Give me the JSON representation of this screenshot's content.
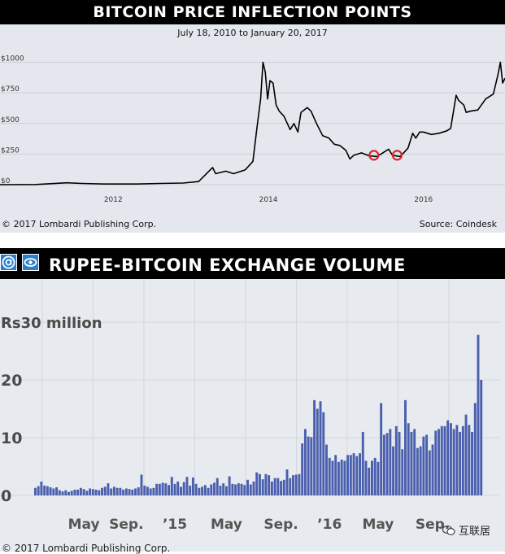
{
  "chart_data": [
    {
      "type": "line",
      "title": "BITCOIN PRICE INFLECTION POINTS",
      "subtitle": "July 18, 2010 to January 20, 2017",
      "y_ticks": [
        "$1000",
        "$750",
        "$500",
        "$250",
        "$0"
      ],
      "y_tick_values": [
        1000,
        750,
        500,
        250,
        0
      ],
      "x_ticks": [
        "2012",
        "2014",
        "2016"
      ],
      "x_tick_values": [
        2012.0,
        2014.0,
        2016.0
      ],
      "xlim": [
        2010.54,
        2017.05
      ],
      "ylim": [
        0,
        1030
      ],
      "grid": true,
      "line_color": "#000000",
      "highlight_color": "#e0262b",
      "points": [
        [
          2010.54,
          0
        ],
        [
          2011.0,
          1
        ],
        [
          2011.4,
          15
        ],
        [
          2011.6,
          10
        ],
        [
          2011.9,
          5
        ],
        [
          2012.3,
          5
        ],
        [
          2012.6,
          10
        ],
        [
          2012.9,
          13
        ],
        [
          2013.1,
          25
        ],
        [
          2013.28,
          140
        ],
        [
          2013.32,
          90
        ],
        [
          2013.45,
          110
        ],
        [
          2013.55,
          90
        ],
        [
          2013.7,
          120
        ],
        [
          2013.8,
          190
        ],
        [
          2013.85,
          450
        ],
        [
          2013.9,
          700
        ],
        [
          2013.93,
          1000
        ],
        [
          2013.96,
          920
        ],
        [
          2013.99,
          700
        ],
        [
          2014.02,
          850
        ],
        [
          2014.06,
          830
        ],
        [
          2014.1,
          650
        ],
        [
          2014.14,
          600
        ],
        [
          2014.2,
          560
        ],
        [
          2014.28,
          450
        ],
        [
          2014.33,
          500
        ],
        [
          2014.38,
          430
        ],
        [
          2014.42,
          590
        ],
        [
          2014.5,
          630
        ],
        [
          2014.55,
          600
        ],
        [
          2014.62,
          500
        ],
        [
          2014.7,
          400
        ],
        [
          2014.78,
          380
        ],
        [
          2014.85,
          330
        ],
        [
          2014.92,
          320
        ],
        [
          2015.0,
          280
        ],
        [
          2015.05,
          210
        ],
        [
          2015.1,
          240
        ],
        [
          2015.2,
          260
        ],
        [
          2015.3,
          235
        ],
        [
          2015.4,
          230
        ],
        [
          2015.5,
          270
        ],
        [
          2015.55,
          290
        ],
        [
          2015.6,
          240
        ],
        [
          2015.7,
          230
        ],
        [
          2015.8,
          300
        ],
        [
          2015.86,
          420
        ],
        [
          2015.9,
          380
        ],
        [
          2015.95,
          430
        ],
        [
          2016.0,
          430
        ],
        [
          2016.1,
          410
        ],
        [
          2016.2,
          420
        ],
        [
          2016.3,
          440
        ],
        [
          2016.35,
          460
        ],
        [
          2016.42,
          730
        ],
        [
          2016.45,
          690
        ],
        [
          2016.52,
          650
        ],
        [
          2016.55,
          590
        ],
        [
          2016.6,
          600
        ],
        [
          2016.7,
          610
        ],
        [
          2016.8,
          700
        ],
        [
          2016.9,
          740
        ],
        [
          2016.96,
          900
        ],
        [
          2016.99,
          1000
        ],
        [
          2017.02,
          830
        ],
        [
          2017.05,
          870
        ]
      ],
      "highlights": [
        [
          2015.36,
          240
        ],
        [
          2015.66,
          240
        ]
      ],
      "footer_left": "© 2017 Lombardi Publishing Corp.",
      "footer_right": "Source: Coindesk"
    },
    {
      "type": "bar",
      "title": "RUPEE-BITCOIN EXCHANGE VOLUME",
      "y_tick_labels": [
        "Rs30 million",
        "20",
        "10",
        "0"
      ],
      "y_tick_values": [
        30,
        20,
        10,
        0
      ],
      "ylim": [
        0,
        30
      ],
      "x_tick_labels": [
        "May",
        "Sep.",
        "’15",
        "May",
        "Sep.",
        "’16",
        "May",
        "Sep."
      ],
      "x_tick_bar_index": [
        16,
        30,
        46,
        63,
        81,
        97,
        113,
        131
      ],
      "bar_color": "#4a5fad",
      "grid": true,
      "values": [
        1.3,
        1.6,
        2.4,
        1.7,
        1.6,
        1.4,
        1.2,
        1.4,
        0.9,
        0.7,
        0.9,
        0.6,
        0.8,
        1.0,
        1.0,
        1.3,
        1.1,
        0.8,
        1.2,
        1.1,
        1.0,
        0.9,
        1.3,
        1.5,
        2.1,
        1.2,
        1.5,
        1.3,
        1.3,
        1.0,
        1.2,
        1.1,
        1.0,
        1.2,
        1.4,
        3.6,
        1.7,
        1.5,
        1.2,
        1.3,
        2.0,
        2.0,
        2.2,
        2.1,
        1.8,
        3.2,
        2.0,
        2.4,
        1.5,
        2.3,
        3.2,
        1.7,
        3.1,
        2.0,
        1.3,
        1.5,
        1.8,
        1.3,
        1.9,
        2.2,
        3.0,
        1.7,
        2.1,
        1.6,
        3.3,
        2.0,
        1.9,
        2.1,
        2.0,
        1.8,
        2.7,
        1.9,
        2.4,
        4.0,
        3.7,
        2.8,
        3.7,
        3.5,
        2.4,
        3.0,
        3.0,
        2.5,
        2.7,
        4.5,
        3.0,
        3.5,
        3.6,
        3.7,
        9.0,
        11.5,
        10.2,
        10.1,
        16.5,
        15.0,
        16.3,
        14.4,
        8.8,
        6.5,
        6.0,
        7.0,
        5.8,
        6.2,
        6.0,
        7.0,
        7.0,
        7.3,
        6.8,
        7.3,
        11.0,
        6.0,
        4.8,
        6.0,
        6.5,
        5.8,
        16.0,
        10.5,
        10.8,
        11.5,
        8.5,
        12.0,
        11.0,
        8.0,
        16.5,
        12.5,
        11.0,
        11.5,
        8.2,
        8.5,
        10.2,
        10.5,
        7.8,
        8.8,
        11.2,
        11.5,
        12.0,
        12.0,
        13.0,
        12.5,
        11.5,
        12.2,
        11.0,
        12.0,
        14.0,
        12.2,
        11.0,
        16.0,
        27.8,
        20.0
      ],
      "footer": "© 2017 Lombardi Publishing Corp.",
      "watermark": "互联居"
    }
  ],
  "top": {
    "title": "BITCOIN PRICE INFLECTION POINTS",
    "subtitle": "July 18, 2010 to January 20, 2017",
    "footer_left": "© 2017 Lombardi Publishing Corp.",
    "footer_right": "Source: Coindesk"
  },
  "bottom": {
    "title": "RUPEE-BITCOIN EXCHANGE VOLUME",
    "badge_left_icon": "a-icon",
    "badge_right_icon": "eye-icon",
    "footer": "© 2017 Lombardi Publishing Corp.",
    "watermark": "互联居",
    "watermark_icon": "wechat-icon"
  }
}
